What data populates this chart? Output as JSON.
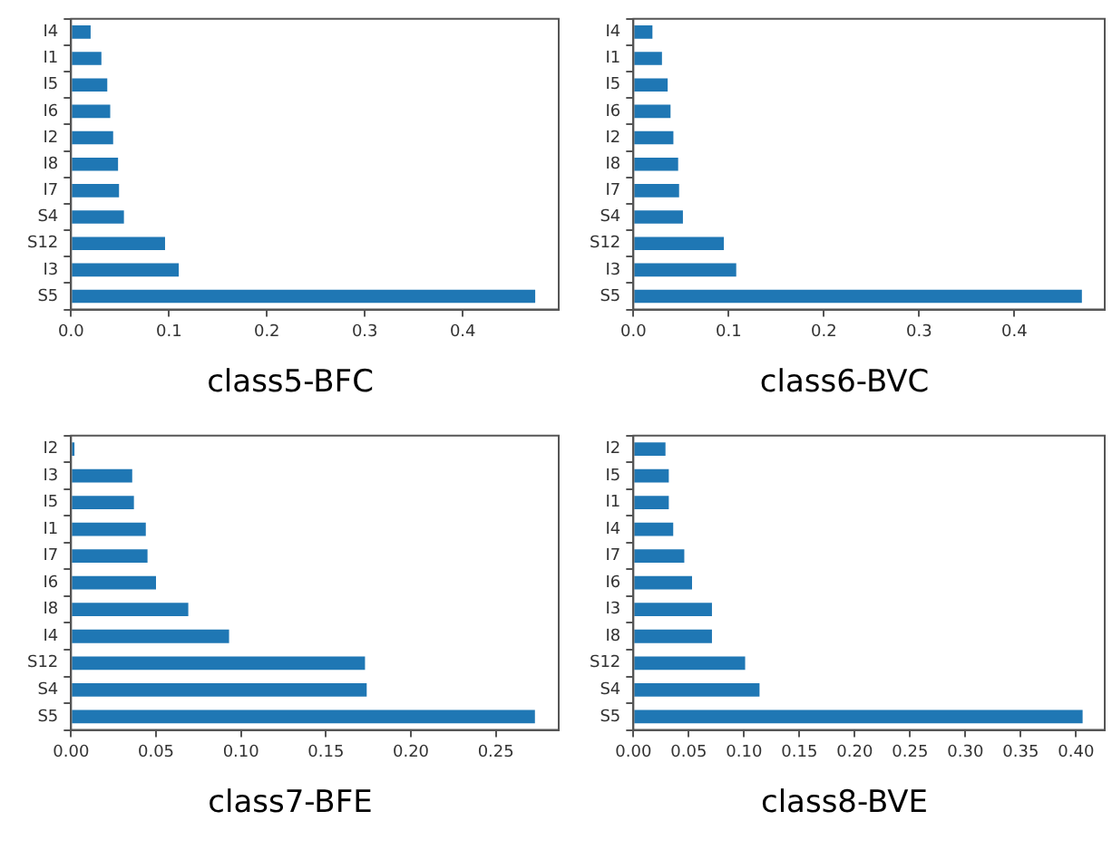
{
  "chart_data": [
    {
      "type": "bar",
      "orientation": "horizontal",
      "title": "class5-BFC",
      "categories": [
        "I4",
        "I1",
        "I5",
        "I6",
        "I2",
        "I8",
        "I7",
        "S4",
        "S12",
        "I3",
        "S5"
      ],
      "values": [
        0.02,
        0.031,
        0.037,
        0.04,
        0.043,
        0.048,
        0.049,
        0.054,
        0.096,
        0.11,
        0.474
      ],
      "color": "#1f77b4",
      "xlim": [
        0,
        0.498
      ],
      "xticks": [
        {
          "value": 0,
          "label": "0.0"
        },
        {
          "value": 0.1,
          "label": "0.1"
        },
        {
          "value": 0.2,
          "label": "0.2"
        },
        {
          "value": 0.3,
          "label": "0.3"
        },
        {
          "value": 0.4,
          "label": "0.4"
        }
      ],
      "grid": false,
      "legend": false
    },
    {
      "type": "bar",
      "orientation": "horizontal",
      "title": "class6-BVC",
      "categories": [
        "I4",
        "I1",
        "I5",
        "I6",
        "I2",
        "I8",
        "I7",
        "S4",
        "S12",
        "I3",
        "S5"
      ],
      "values": [
        0.02,
        0.03,
        0.036,
        0.039,
        0.042,
        0.047,
        0.048,
        0.052,
        0.095,
        0.108,
        0.471
      ],
      "color": "#1f77b4",
      "xlim": [
        0,
        0.495
      ],
      "xticks": [
        {
          "value": 0,
          "label": "0.0"
        },
        {
          "value": 0.1,
          "label": "0.1"
        },
        {
          "value": 0.2,
          "label": "0.2"
        },
        {
          "value": 0.3,
          "label": "0.3"
        },
        {
          "value": 0.4,
          "label": "0.4"
        }
      ],
      "grid": false,
      "legend": false
    },
    {
      "type": "bar",
      "orientation": "horizontal",
      "title": "class7-BFE",
      "categories": [
        "I2",
        "I3",
        "I5",
        "I1",
        "I7",
        "I6",
        "I8",
        "I4",
        "S12",
        "S4",
        "S5"
      ],
      "values": [
        0.002,
        0.036,
        0.037,
        0.044,
        0.045,
        0.05,
        0.069,
        0.093,
        0.173,
        0.174,
        0.273
      ],
      "color": "#1f77b4",
      "xlim": [
        0,
        0.287
      ],
      "xticks": [
        {
          "value": 0,
          "label": "0.00"
        },
        {
          "value": 0.05,
          "label": "0.05"
        },
        {
          "value": 0.1,
          "label": "0.10"
        },
        {
          "value": 0.15,
          "label": "0.15"
        },
        {
          "value": 0.2,
          "label": "0.20"
        },
        {
          "value": 0.25,
          "label": "0.25"
        }
      ],
      "grid": false,
      "legend": false
    },
    {
      "type": "bar",
      "orientation": "horizontal",
      "title": "class8-BVE",
      "categories": [
        "I2",
        "I5",
        "I1",
        "I4",
        "I7",
        "I6",
        "I3",
        "I8",
        "S12",
        "S4",
        "S5"
      ],
      "values": [
        0.029,
        0.032,
        0.032,
        0.036,
        0.046,
        0.053,
        0.071,
        0.071,
        0.101,
        0.114,
        0.406
      ],
      "color": "#1f77b4",
      "xlim": [
        0,
        0.426
      ],
      "xticks": [
        {
          "value": 0,
          "label": "0.00"
        },
        {
          "value": 0.05,
          "label": "0.05"
        },
        {
          "value": 0.1,
          "label": "0.10"
        },
        {
          "value": 0.15,
          "label": "0.15"
        },
        {
          "value": 0.2,
          "label": "0.20"
        },
        {
          "value": 0.25,
          "label": "0.25"
        },
        {
          "value": 0.3,
          "label": "0.30"
        },
        {
          "value": 0.35,
          "label": "0.35"
        },
        {
          "value": 0.4,
          "label": "0.40"
        }
      ],
      "grid": false,
      "legend": false
    }
  ]
}
